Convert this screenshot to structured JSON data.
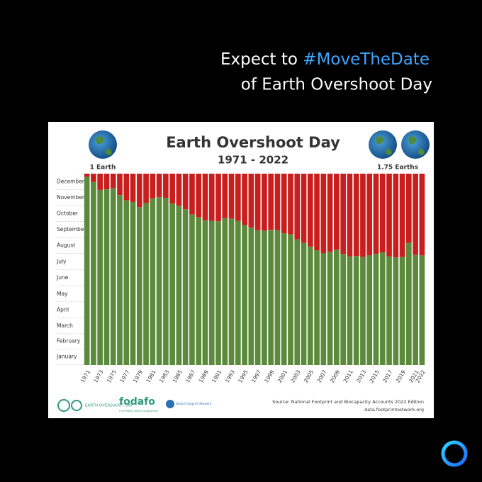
{
  "post": {
    "headline_start": "Expect to ",
    "hashtag": "#MoveTheDate",
    "headline_end": "of Earth Overshoot Day"
  },
  "chart_data": {
    "type": "bar",
    "title": "Earth Overshoot Day",
    "subtitle": "1971 - 2022",
    "left_label": "1 Earth",
    "right_label": "1.75 Earths",
    "categories": [
      "1971",
      null,
      "1973",
      null,
      "1975",
      null,
      "1977",
      null,
      "1979",
      null,
      "1981",
      null,
      "1983",
      null,
      "1985",
      null,
      "1987",
      null,
      "1989",
      null,
      "1991",
      null,
      "1993",
      null,
      "1995",
      null,
      "1997",
      null,
      "1999",
      null,
      "2001",
      null,
      "2003",
      null,
      "2005",
      null,
      "2007",
      null,
      "2009",
      null,
      "2011",
      null,
      "2013",
      null,
      "2015",
      null,
      "2017",
      null,
      "2019",
      null,
      "2021",
      "2022"
    ],
    "values": [
      359,
      349,
      334,
      335,
      337,
      324,
      314,
      311,
      301,
      309,
      318,
      320,
      319,
      308,
      304,
      297,
      287,
      282,
      276,
      275,
      274,
      280,
      279,
      275,
      267,
      262,
      257,
      256,
      258,
      257,
      251,
      249,
      240,
      233,
      226,
      219,
      213,
      216,
      220,
      212,
      207,
      208,
      206,
      209,
      212,
      215,
      207,
      205,
      206,
      233,
      210,
      209
    ],
    "color": "#5b8a3c",
    "overshoot_color": "#c81e1e",
    "ylim": [
      0,
      365
    ],
    "yticks": [
      {
        "value": 15.5,
        "label": "January"
      },
      {
        "value": 45,
        "label": "February"
      },
      {
        "value": 74.5,
        "label": "March"
      },
      {
        "value": 105,
        "label": "April"
      },
      {
        "value": 135.5,
        "label": "May"
      },
      {
        "value": 166,
        "label": "June"
      },
      {
        "value": 196.5,
        "label": "July"
      },
      {
        "value": 227.5,
        "label": "August"
      },
      {
        "value": 258,
        "label": "September"
      },
      {
        "value": 288.5,
        "label": "October"
      },
      {
        "value": 319,
        "label": "November"
      },
      {
        "value": 349.5,
        "label": "December"
      }
    ],
    "grid": true
  },
  "footer": {
    "logo_1": "EARTH OVERSHOOT DAY",
    "logo_2": "fodafo",
    "logo_2_sub": "FOOTPRINT DATA FOUNDATION",
    "logo_3": "Global Footprint Network",
    "source": "Source: National Footprint and Biocapacity Accounts 2022 Edition",
    "url": "data.footprintnetwork.org"
  }
}
